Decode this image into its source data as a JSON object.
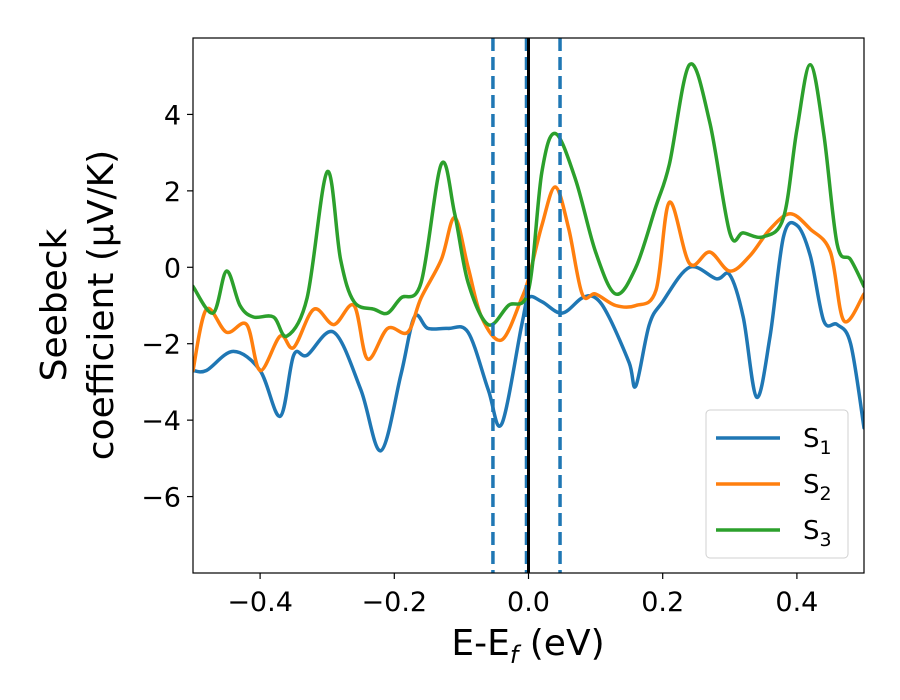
{
  "chart_data": {
    "type": "line",
    "xlabel": {
      "prefix": "E-E",
      "sub": "f",
      "suffix": " (eV)"
    },
    "ylabel": {
      "line1": "Seebeck",
      "line2": "coefficient  (μV/K)"
    },
    "xlim": [
      -0.5,
      0.5
    ],
    "ylim": [
      -8,
      6
    ],
    "xticks": [
      -0.4,
      -0.2,
      0.0,
      0.2,
      0.4
    ],
    "xtick_labels": [
      "−0.4",
      "−0.2",
      "0.0",
      "0.2",
      "0.4"
    ],
    "yticks": [
      -6,
      -4,
      -2,
      0,
      2,
      4
    ],
    "ytick_labels": [
      "−6",
      "−4",
      "−2",
      "0",
      "2",
      "4"
    ],
    "grid": false,
    "legend_position": "lower-right",
    "vlines": [
      {
        "x": -0.053,
        "style": "dashed",
        "color": "#1f77b4"
      },
      {
        "x": -0.003,
        "style": "dashed",
        "color": "#1f77b4"
      },
      {
        "x": 0.047,
        "style": "dashed",
        "color": "#1f77b4"
      },
      {
        "x": 0.0,
        "style": "solid",
        "color": "#000000"
      }
    ],
    "series": [
      {
        "name": "S",
        "sub": "1",
        "color": "#1f77b4",
        "points": [
          [
            -0.5,
            -2.7
          ],
          [
            -0.48,
            -2.7
          ],
          [
            -0.44,
            -2.2
          ],
          [
            -0.4,
            -2.7
          ],
          [
            -0.37,
            -3.9
          ],
          [
            -0.35,
            -2.3
          ],
          [
            -0.33,
            -2.3
          ],
          [
            -0.29,
            -1.7
          ],
          [
            -0.25,
            -3.2
          ],
          [
            -0.22,
            -4.8
          ],
          [
            -0.19,
            -2.8
          ],
          [
            -0.17,
            -1.3
          ],
          [
            -0.15,
            -1.6
          ],
          [
            -0.12,
            -1.6
          ],
          [
            -0.09,
            -1.7
          ],
          [
            -0.06,
            -3.2
          ],
          [
            -0.04,
            -4.1
          ],
          [
            -0.01,
            -1.5
          ],
          [
            0.0,
            -0.8
          ],
          [
            0.02,
            -0.9
          ],
          [
            0.05,
            -1.2
          ],
          [
            0.08,
            -0.8
          ],
          [
            0.1,
            -0.8
          ],
          [
            0.12,
            -1.3
          ],
          [
            0.15,
            -2.5
          ],
          [
            0.16,
            -3.1
          ],
          [
            0.18,
            -1.5
          ],
          [
            0.2,
            -0.9
          ],
          [
            0.24,
            0.0
          ],
          [
            0.28,
            -0.3
          ],
          [
            0.3,
            -0.2
          ],
          [
            0.32,
            -1.3
          ],
          [
            0.34,
            -3.4
          ],
          [
            0.36,
            -1.8
          ],
          [
            0.38,
            0.8
          ],
          [
            0.4,
            1.1
          ],
          [
            0.42,
            0.3
          ],
          [
            0.44,
            -1.4
          ],
          [
            0.46,
            -1.5
          ],
          [
            0.48,
            -2.0
          ],
          [
            0.5,
            -4.2
          ]
        ]
      },
      {
        "name": "S",
        "sub": "2",
        "color": "#ff7f0e",
        "points": [
          [
            -0.5,
            -2.7
          ],
          [
            -0.48,
            -1.1
          ],
          [
            -0.45,
            -1.7
          ],
          [
            -0.42,
            -1.5
          ],
          [
            -0.4,
            -2.7
          ],
          [
            -0.37,
            -1.8
          ],
          [
            -0.35,
            -2.1
          ],
          [
            -0.32,
            -1.1
          ],
          [
            -0.29,
            -1.5
          ],
          [
            -0.26,
            -1.0
          ],
          [
            -0.24,
            -2.4
          ],
          [
            -0.21,
            -1.6
          ],
          [
            -0.18,
            -1.7
          ],
          [
            -0.16,
            -0.8
          ],
          [
            -0.13,
            0.2
          ],
          [
            -0.11,
            1.3
          ],
          [
            -0.09,
            0.0
          ],
          [
            -0.07,
            -1.3
          ],
          [
            -0.04,
            -1.9
          ],
          [
            -0.01,
            -0.8
          ],
          [
            0.0,
            -0.3
          ],
          [
            0.02,
            1.1
          ],
          [
            0.04,
            2.1
          ],
          [
            0.06,
            1.0
          ],
          [
            0.08,
            -0.7
          ],
          [
            0.1,
            -0.7
          ],
          [
            0.13,
            -1.0
          ],
          [
            0.16,
            -1.0
          ],
          [
            0.19,
            -0.6
          ],
          [
            0.21,
            1.7
          ],
          [
            0.24,
            0.1
          ],
          [
            0.27,
            0.4
          ],
          [
            0.3,
            -0.1
          ],
          [
            0.33,
            0.3
          ],
          [
            0.36,
            1.0
          ],
          [
            0.39,
            1.4
          ],
          [
            0.42,
            1.0
          ],
          [
            0.45,
            0.4
          ],
          [
            0.47,
            -1.4
          ],
          [
            0.5,
            -0.7
          ]
        ]
      },
      {
        "name": "S",
        "sub": "3",
        "color": "#2ca02c",
        "points": [
          [
            -0.5,
            -0.5
          ],
          [
            -0.47,
            -1.2
          ],
          [
            -0.45,
            -0.1
          ],
          [
            -0.43,
            -1.0
          ],
          [
            -0.41,
            -1.3
          ],
          [
            -0.38,
            -1.3
          ],
          [
            -0.36,
            -1.8
          ],
          [
            -0.33,
            -0.8
          ],
          [
            -0.3,
            2.5
          ],
          [
            -0.28,
            0.2
          ],
          [
            -0.26,
            -0.9
          ],
          [
            -0.23,
            -1.1
          ],
          [
            -0.21,
            -1.2
          ],
          [
            -0.19,
            -0.8
          ],
          [
            -0.16,
            -0.4
          ],
          [
            -0.13,
            2.7
          ],
          [
            -0.11,
            1.4
          ],
          [
            -0.09,
            -0.4
          ],
          [
            -0.06,
            -1.5
          ],
          [
            -0.03,
            -1.0
          ],
          [
            0.0,
            -0.6
          ],
          [
            0.02,
            2.5
          ],
          [
            0.04,
            3.5
          ],
          [
            0.07,
            2.3
          ],
          [
            0.1,
            0.4
          ],
          [
            0.13,
            -0.7
          ],
          [
            0.16,
            0.0
          ],
          [
            0.19,
            1.6
          ],
          [
            0.21,
            2.7
          ],
          [
            0.24,
            5.3
          ],
          [
            0.27,
            3.8
          ],
          [
            0.3,
            0.9
          ],
          [
            0.32,
            0.9
          ],
          [
            0.35,
            0.8
          ],
          [
            0.38,
            1.3
          ],
          [
            0.4,
            3.6
          ],
          [
            0.42,
            5.3
          ],
          [
            0.44,
            3.5
          ],
          [
            0.46,
            0.6
          ],
          [
            0.48,
            0.2
          ],
          [
            0.5,
            -0.5
          ]
        ]
      }
    ]
  }
}
